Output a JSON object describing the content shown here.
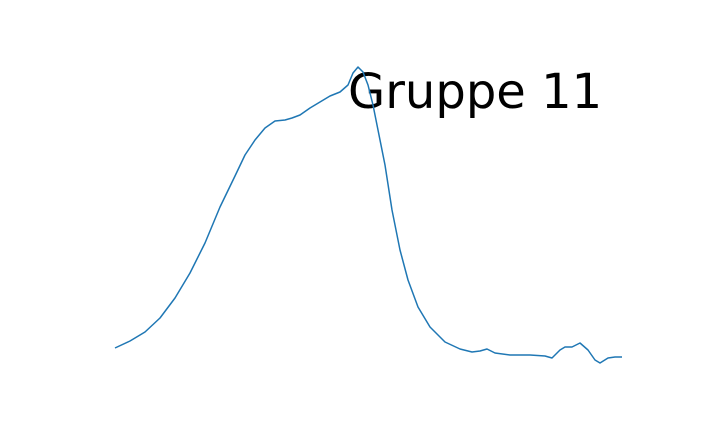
{
  "chart_data": {
    "type": "line",
    "annotation": "Gruppe 11",
    "x": [
      25,
      40,
      55,
      70,
      85,
      100,
      115,
      130,
      145,
      155,
      165,
      175,
      185,
      195,
      202,
      210,
      220,
      230,
      240,
      250,
      258,
      263,
      268,
      273,
      278,
      283,
      288,
      295,
      302,
      310,
      318,
      328,
      340,
      355,
      370,
      382,
      390,
      397,
      405,
      420,
      440,
      455,
      462,
      470,
      475,
      482,
      490,
      498,
      505,
      510,
      518,
      525,
      532
    ],
    "series": [
      {
        "color": "#1f77b4",
        "values": [
          36,
          43,
          52,
          66,
          86,
          111,
          141,
          177,
          208,
          229,
          244,
          256,
          263,
          264,
          266,
          269,
          276,
          282,
          288,
          292,
          299,
          311,
          317,
          312,
          299,
          279,
          254,
          219,
          174,
          134,
          104,
          77,
          57,
          42,
          35,
          32,
          33,
          35,
          31,
          29,
          29,
          28,
          26,
          34,
          37,
          37,
          41,
          34,
          24,
          21,
          26,
          27,
          27
        ]
      }
    ],
    "xlim": [
      0,
      558
    ],
    "ylim": [
      0,
      333
    ]
  }
}
